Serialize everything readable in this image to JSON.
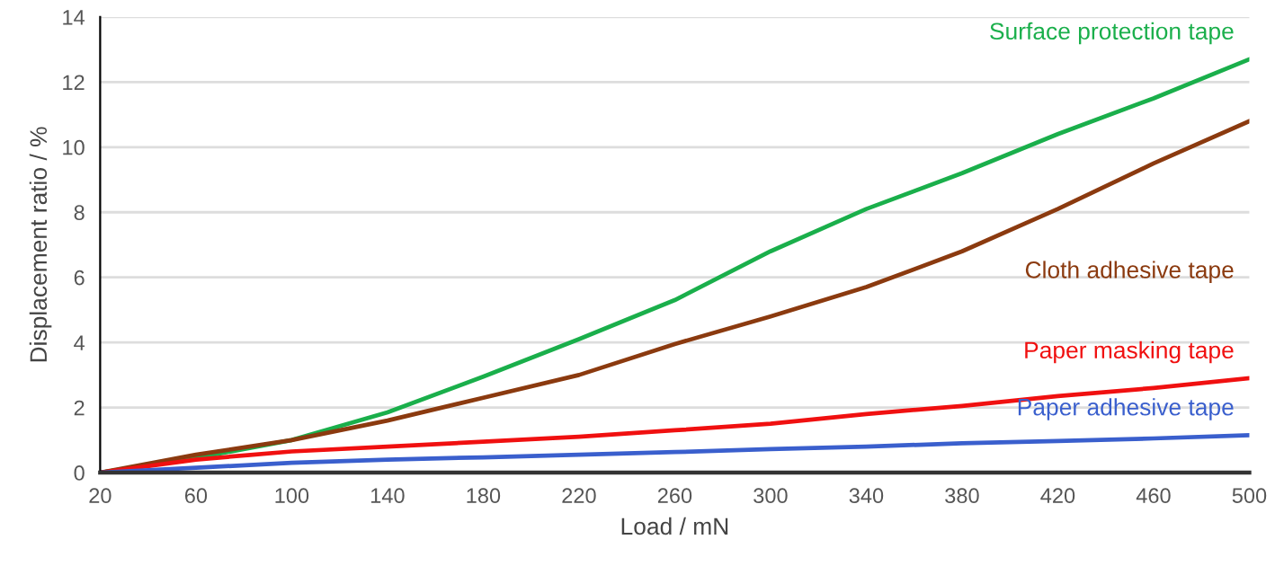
{
  "chart_data": {
    "type": "line",
    "xlabel": "Load / mN",
    "ylabel": "Displacement ratio / %",
    "x": [
      20,
      60,
      100,
      140,
      180,
      220,
      260,
      300,
      340,
      380,
      420,
      460,
      500
    ],
    "series": [
      {
        "name": "Surface protection tape",
        "color": "#1aaf4b",
        "values": [
          0,
          0.45,
          1.0,
          1.85,
          2.95,
          4.1,
          5.3,
          6.8,
          8.1,
          9.2,
          10.4,
          11.5,
          12.7
        ]
      },
      {
        "name": "Cloth adhesive tape",
        "color": "#8b3a0f",
        "values": [
          0,
          0.55,
          1.0,
          1.6,
          2.3,
          3.0,
          3.95,
          4.8,
          5.7,
          6.8,
          8.1,
          9.5,
          10.8
        ]
      },
      {
        "name": "Paper masking tape",
        "color": "#f01010",
        "values": [
          0,
          0.4,
          0.65,
          0.8,
          0.95,
          1.1,
          1.3,
          1.5,
          1.8,
          2.05,
          2.35,
          2.6,
          2.9
        ]
      },
      {
        "name": "Paper adhesive tape",
        "color": "#3a5fcd",
        "values": [
          0,
          0.15,
          0.3,
          0.4,
          0.47,
          0.55,
          0.63,
          0.72,
          0.8,
          0.9,
          0.97,
          1.05,
          1.15
        ]
      }
    ],
    "xlim": [
      20,
      500
    ],
    "xticks": [
      20,
      60,
      100,
      140,
      180,
      220,
      260,
      300,
      340,
      380,
      420,
      460,
      500
    ],
    "ylim": [
      0,
      14
    ],
    "yticks": [
      0,
      2,
      4,
      6,
      8,
      10,
      12,
      14
    ],
    "grid": "y",
    "legend": false
  }
}
